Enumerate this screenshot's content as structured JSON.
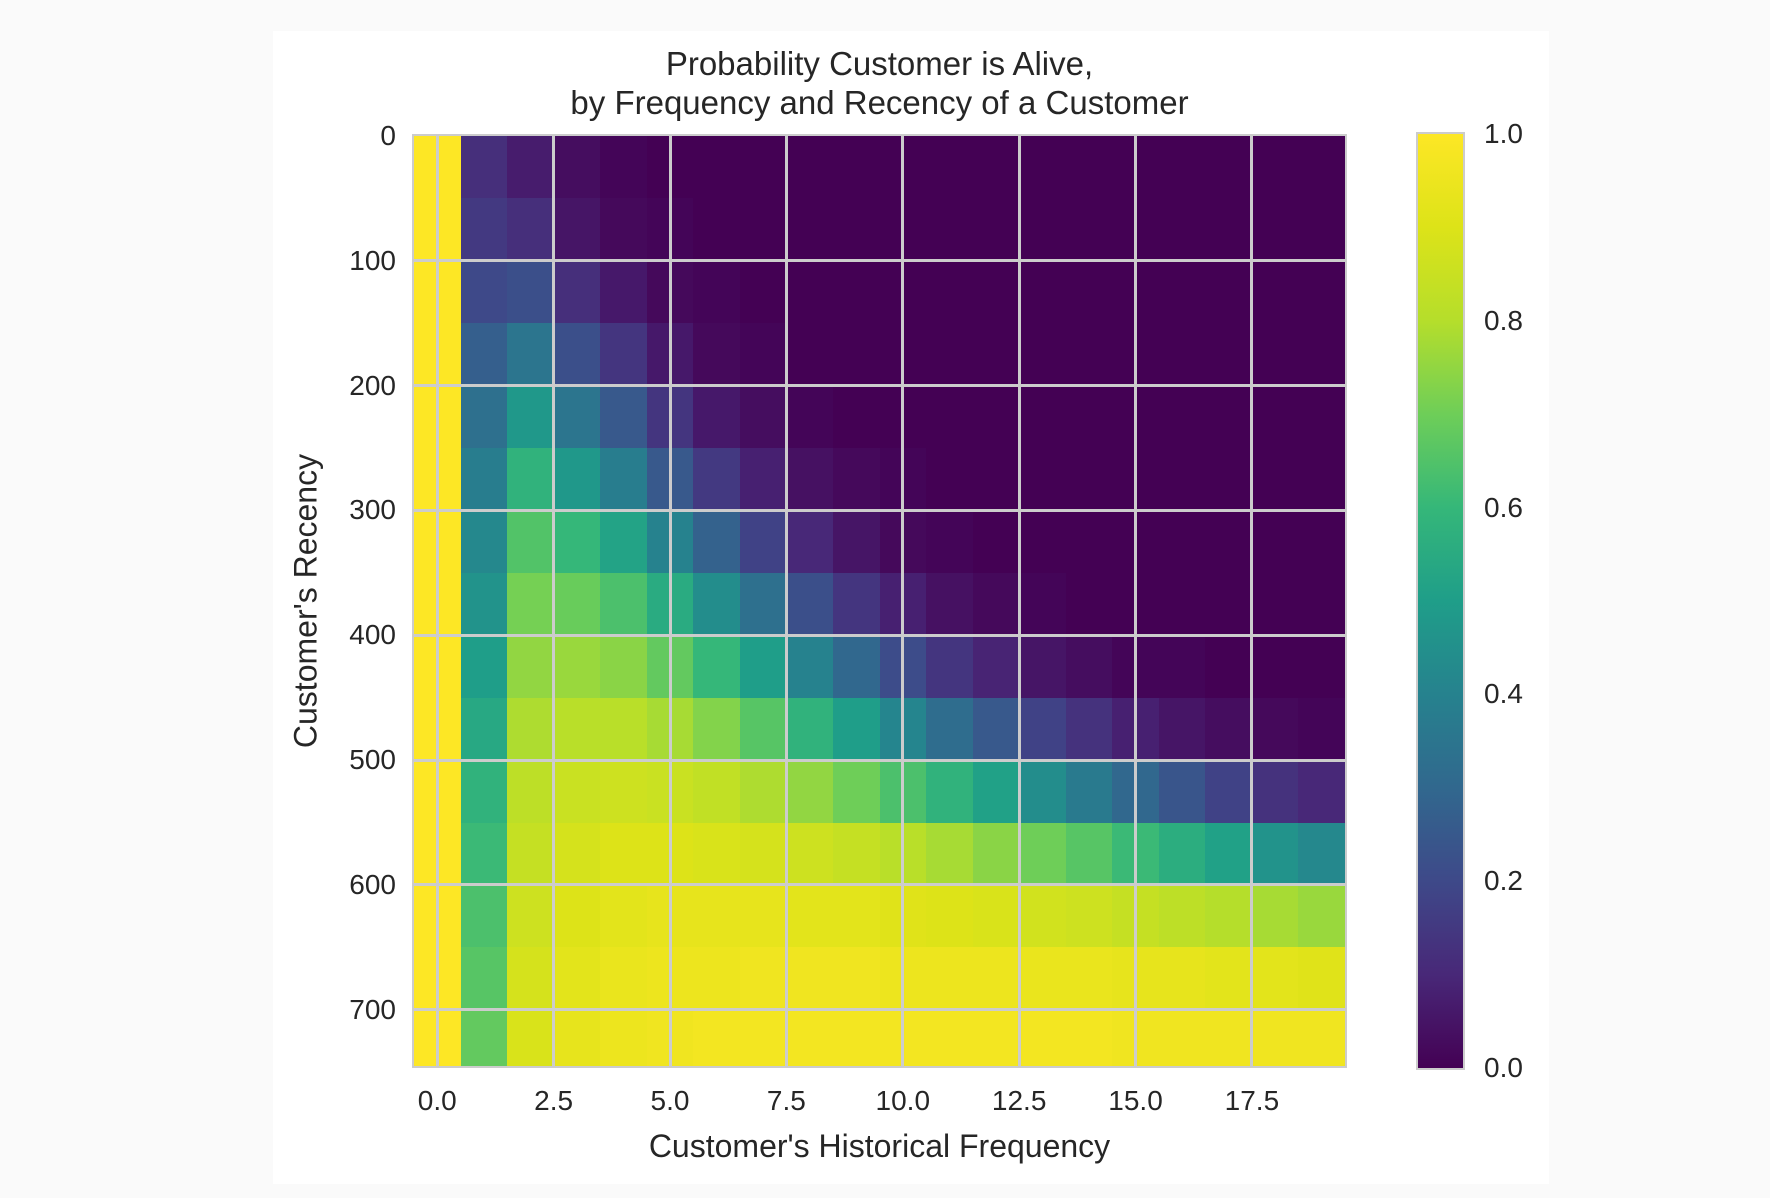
{
  "figure": {
    "title_line1": "Probability Customer is Alive,",
    "title_line2": "by Frequency and Recency of a Customer",
    "xlabel": "Customer's Historical Frequency",
    "ylabel": "Customer's Recency",
    "x_ticks": [
      "0.0",
      "2.5",
      "5.0",
      "7.5",
      "10.0",
      "12.5",
      "15.0",
      "17.5"
    ],
    "y_ticks": [
      "0",
      "100",
      "200",
      "300",
      "400",
      "500",
      "600",
      "700"
    ],
    "colorbar_ticks": [
      "1.0",
      "0.8",
      "0.6",
      "0.4",
      "0.2",
      "0.0"
    ],
    "colormap": "viridis",
    "grid_color": "#cccccc",
    "background_color": "#ffffff"
  },
  "chart_data": {
    "type": "heatmap",
    "title": "Probability Customer is Alive,\nby Frequency and Recency of a Customer",
    "xlabel": "Customer's Historical Frequency",
    "ylabel": "Customer's Recency",
    "x": [
      0,
      1,
      2,
      3,
      4,
      5,
      6,
      7,
      8,
      9,
      10,
      11,
      12,
      13,
      14,
      15,
      16,
      17,
      18,
      19
    ],
    "y": [
      0,
      50,
      100,
      150,
      200,
      250,
      300,
      350,
      400,
      450,
      500,
      550,
      600,
      650,
      700
    ],
    "xlim": [
      -0.5,
      19.5
    ],
    "ylim": [
      745,
      0
    ],
    "y_inverted": true,
    "x_tick_values": [
      0,
      2.5,
      5,
      7.5,
      10,
      12.5,
      15,
      17.5
    ],
    "y_tick_values": [
      0,
      100,
      200,
      300,
      400,
      500,
      600,
      700
    ],
    "colorbar": {
      "label": "",
      "range": [
        0,
        1
      ],
      "ticks": [
        0,
        0.2,
        0.4,
        0.6,
        0.8,
        1.0
      ],
      "cmap": "viridis"
    },
    "grid": true,
    "z": [
      [
        1.0,
        0.12,
        0.07,
        0.03,
        0.01,
        0.0,
        0.0,
        0.0,
        0.0,
        0.0,
        0.0,
        0.0,
        0.0,
        0.0,
        0.0,
        0.0,
        0.0,
        0.0,
        0.0,
        0.0
      ],
      [
        1.0,
        0.15,
        0.12,
        0.05,
        0.02,
        0.01,
        0.0,
        0.0,
        0.0,
        0.0,
        0.0,
        0.0,
        0.0,
        0.0,
        0.0,
        0.0,
        0.0,
        0.0,
        0.0,
        0.0
      ],
      [
        1.0,
        0.2,
        0.22,
        0.12,
        0.06,
        0.02,
        0.01,
        0.0,
        0.0,
        0.0,
        0.0,
        0.0,
        0.0,
        0.0,
        0.0,
        0.0,
        0.0,
        0.0,
        0.0,
        0.0
      ],
      [
        1.0,
        0.27,
        0.35,
        0.22,
        0.14,
        0.06,
        0.02,
        0.01,
        0.0,
        0.0,
        0.0,
        0.0,
        0.0,
        0.0,
        0.0,
        0.0,
        0.0,
        0.0,
        0.0,
        0.0
      ],
      [
        1.0,
        0.33,
        0.48,
        0.35,
        0.25,
        0.14,
        0.06,
        0.03,
        0.01,
        0.0,
        0.0,
        0.0,
        0.0,
        0.0,
        0.0,
        0.0,
        0.0,
        0.0,
        0.0,
        0.0
      ],
      [
        1.0,
        0.38,
        0.58,
        0.48,
        0.38,
        0.25,
        0.15,
        0.08,
        0.04,
        0.02,
        0.01,
        0.0,
        0.0,
        0.0,
        0.0,
        0.0,
        0.0,
        0.0,
        0.0,
        0.0
      ],
      [
        1.0,
        0.42,
        0.65,
        0.6,
        0.52,
        0.4,
        0.28,
        0.18,
        0.1,
        0.05,
        0.02,
        0.01,
        0.0,
        0.0,
        0.0,
        0.0,
        0.0,
        0.0,
        0.0,
        0.0
      ],
      [
        1.0,
        0.46,
        0.71,
        0.69,
        0.64,
        0.55,
        0.44,
        0.33,
        0.22,
        0.14,
        0.08,
        0.04,
        0.02,
        0.01,
        0.0,
        0.0,
        0.0,
        0.0,
        0.0,
        0.0
      ],
      [
        1.0,
        0.5,
        0.75,
        0.76,
        0.74,
        0.68,
        0.6,
        0.5,
        0.4,
        0.3,
        0.21,
        0.14,
        0.09,
        0.05,
        0.03,
        0.01,
        0.01,
        0.0,
        0.0,
        0.0
      ],
      [
        1.0,
        0.54,
        0.79,
        0.81,
        0.81,
        0.78,
        0.73,
        0.66,
        0.58,
        0.5,
        0.41,
        0.32,
        0.25,
        0.18,
        0.13,
        0.08,
        0.05,
        0.03,
        0.02,
        0.01
      ],
      [
        1.0,
        0.58,
        0.82,
        0.85,
        0.86,
        0.85,
        0.83,
        0.79,
        0.75,
        0.7,
        0.64,
        0.58,
        0.51,
        0.44,
        0.37,
        0.3,
        0.24,
        0.18,
        0.13,
        0.1
      ],
      [
        1.0,
        0.61,
        0.84,
        0.88,
        0.9,
        0.9,
        0.89,
        0.88,
        0.86,
        0.84,
        0.81,
        0.78,
        0.74,
        0.7,
        0.66,
        0.61,
        0.56,
        0.51,
        0.46,
        0.42
      ],
      [
        1.0,
        0.64,
        0.86,
        0.9,
        0.92,
        0.93,
        0.93,
        0.93,
        0.92,
        0.92,
        0.91,
        0.9,
        0.89,
        0.87,
        0.86,
        0.84,
        0.82,
        0.8,
        0.78,
        0.76
      ],
      [
        1.0,
        0.66,
        0.88,
        0.92,
        0.94,
        0.95,
        0.95,
        0.96,
        0.96,
        0.96,
        0.95,
        0.95,
        0.95,
        0.94,
        0.94,
        0.93,
        0.93,
        0.92,
        0.92,
        0.91
      ],
      [
        1.0,
        0.68,
        0.89,
        0.93,
        0.95,
        0.96,
        0.97,
        0.97,
        0.97,
        0.97,
        0.97,
        0.97,
        0.97,
        0.97,
        0.97,
        0.96,
        0.96,
        0.96,
        0.96,
        0.96
      ]
    ]
  }
}
